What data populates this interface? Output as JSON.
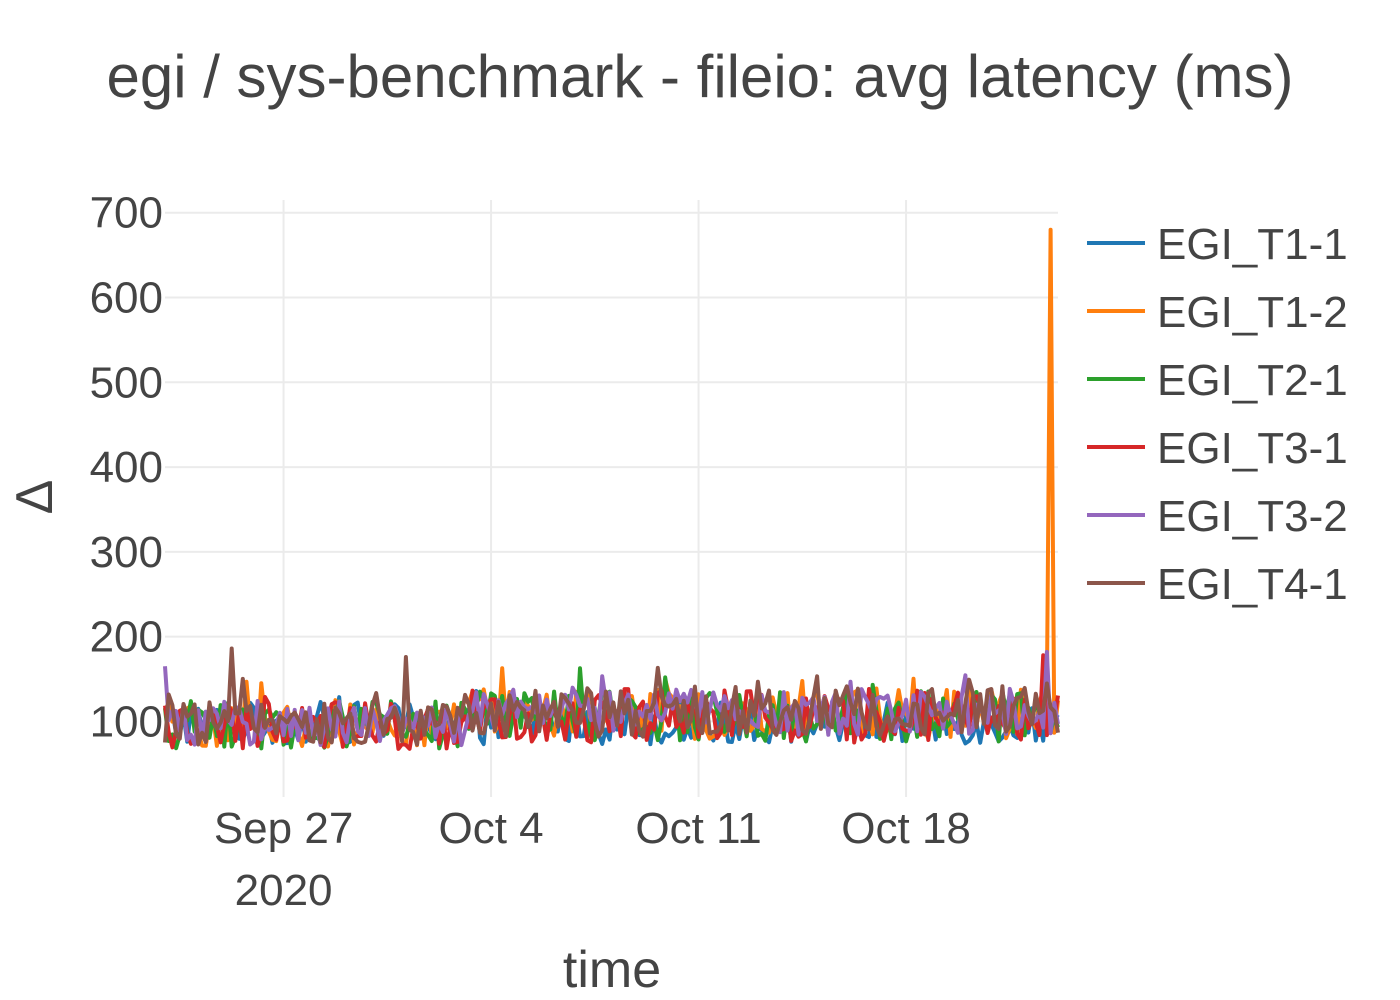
{
  "chart_data": {
    "type": "line",
    "title": "egi / sys-benchmark - fileio: avg latency (ms)",
    "xlabel": "time",
    "ylabel": "Δ",
    "x_range": [
      "2020-09-23",
      "2020-10-23T03:00"
    ],
    "ylim": [
      25,
      715
    ],
    "y_ticks": [
      100,
      200,
      300,
      400,
      500,
      600,
      700
    ],
    "x_ticks": [
      {
        "date": "2020-09-27",
        "label": "Sep 27",
        "sublabel": "2020"
      },
      {
        "date": "2020-10-04",
        "label": "Oct 4",
        "sublabel": ""
      },
      {
        "date": "2020-10-11",
        "label": "Oct 11",
        "sublabel": ""
      },
      {
        "date": "2020-10-18",
        "label": "Oct 18",
        "sublabel": ""
      }
    ],
    "grid": true,
    "legend_position": "right",
    "sampling": "every 3 hours",
    "series": [
      {
        "name": "EGI_T1-1",
        "color": "#1f77b4",
        "segments": [
          {
            "start": "2020-09-23",
            "end": "2020-10-23T03:00",
            "level": 98,
            "jitter": 25
          }
        ],
        "spikes": []
      },
      {
        "name": "EGI_T1-2",
        "color": "#ff7f0e",
        "segments": [
          {
            "start": "2020-09-23",
            "end": "2020-10-03",
            "level": 97,
            "jitter": 28
          },
          {
            "start": "2020-10-03",
            "end": "2020-10-23T03:00",
            "level": 108,
            "jitter": 30
          }
        ],
        "spikes": [
          {
            "date": "2020-10-22T21:00",
            "value": 680
          },
          {
            "date": "2020-10-22T18:00",
            "value": 140
          }
        ]
      },
      {
        "name": "EGI_T2-1",
        "color": "#2ca02c",
        "segments": [
          {
            "start": "2020-09-23",
            "end": "2020-10-03",
            "level": 96,
            "jitter": 28
          },
          {
            "start": "2020-10-03",
            "end": "2020-10-23T03:00",
            "level": 106,
            "jitter": 30
          }
        ],
        "spikes": []
      },
      {
        "name": "EGI_T3-1",
        "color": "#d62728",
        "segments": [
          {
            "start": "2020-09-23",
            "end": "2020-10-03",
            "level": 95,
            "jitter": 28
          },
          {
            "start": "2020-10-03",
            "end": "2020-10-23T03:00",
            "level": 107,
            "jitter": 32
          }
        ],
        "spikes": [
          {
            "date": "2020-10-22T15:00",
            "value": 178
          }
        ]
      },
      {
        "name": "EGI_T3-2",
        "color": "#9467bd",
        "segments": [
          {
            "start": "2020-09-23",
            "end": "2020-10-03",
            "level": 98,
            "jitter": 26
          },
          {
            "start": "2020-10-03",
            "end": "2020-10-23T03:00",
            "level": 112,
            "jitter": 28
          }
        ],
        "spikes": [
          {
            "date": "2020-10-22T18:00",
            "value": 182
          },
          {
            "date": "2020-09-23T00:00",
            "value": 165
          }
        ]
      },
      {
        "name": "EGI_T4-1",
        "color": "#8c564b",
        "segments": [
          {
            "start": "2020-09-23",
            "end": "2020-10-03",
            "level": 98,
            "jitter": 26
          },
          {
            "start": "2020-10-03",
            "end": "2020-10-23T03:00",
            "level": 112,
            "jitter": 30
          }
        ],
        "spikes": [
          {
            "date": "2020-09-25T06:00",
            "value": 186
          },
          {
            "date": "2020-10-01T03:00",
            "value": 176
          }
        ]
      }
    ]
  }
}
